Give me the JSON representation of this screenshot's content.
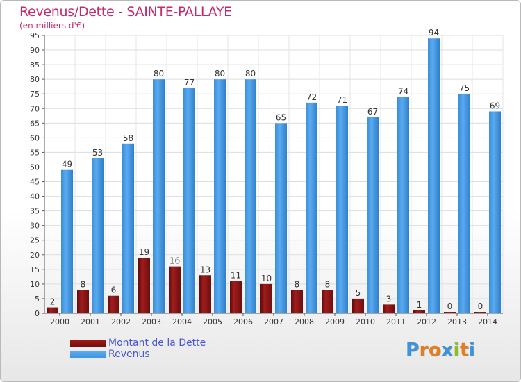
{
  "title": "Revenus/Dette - SAINTE-PALLAYE",
  "subtitle": "(en milliers d'€)",
  "colors": {
    "dette": "#8b1414",
    "revenus": "#3b93dd",
    "title": "#c72a6a",
    "legend_text": "#4a56d8"
  },
  "legend": [
    {
      "label": "Montant de la Dette",
      "color": "#6e0e0e"
    },
    {
      "label": "Revenus",
      "color": "#3b93dd"
    }
  ],
  "logo": {
    "letters": [
      "P",
      "r",
      "o",
      "x",
      "i",
      "t",
      "i"
    ],
    "colors": [
      "#3b93dd",
      "#e57d20",
      "#e57d20",
      "#3b93dd",
      "#8cbf26",
      "#e57d20",
      "#3b93dd"
    ]
  },
  "chart_data": {
    "type": "bar",
    "title": "Revenus/Dette - SAINTE-PALLAYE",
    "ylabel": "(en milliers d'€)",
    "xlabel": "",
    "ylim": [
      0,
      95
    ],
    "yticks": [
      0,
      5,
      10,
      15,
      20,
      25,
      30,
      35,
      40,
      45,
      50,
      55,
      60,
      65,
      70,
      75,
      80,
      85,
      90,
      95
    ],
    "grid": true,
    "categories": [
      "2000",
      "2001",
      "2002",
      "2003",
      "2004",
      "2005",
      "2006",
      "2007",
      "2008",
      "2009",
      "2010",
      "2011",
      "2012",
      "2013",
      "2014"
    ],
    "series": [
      {
        "name": "Montant de la Dette",
        "values": [
          2,
          8,
          6,
          19,
          16,
          13,
          11,
          10,
          8,
          8,
          5,
          3,
          1,
          0,
          0
        ]
      },
      {
        "name": "Revenus",
        "values": [
          49,
          53,
          58,
          80,
          77,
          80,
          80,
          65,
          72,
          71,
          67,
          74,
          94,
          75,
          69
        ]
      }
    ]
  }
}
